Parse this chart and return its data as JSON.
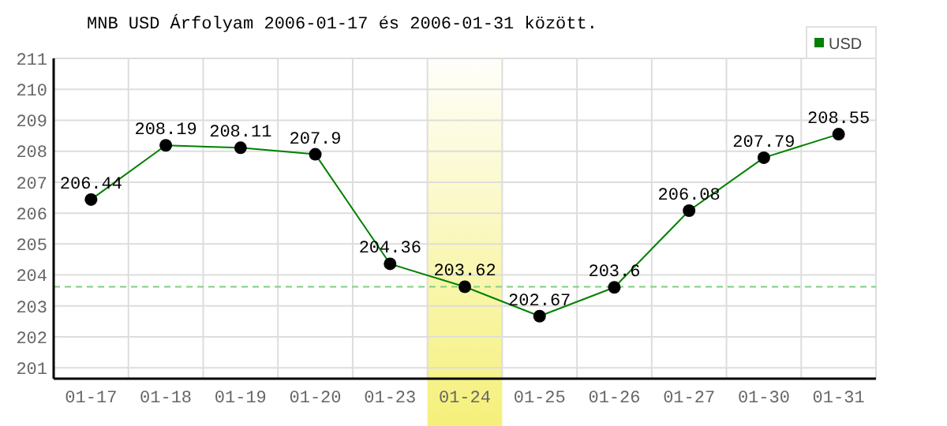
{
  "chart_data": {
    "type": "line",
    "title": "MNB USD Árfolyam 2006-01-17 és 2006-01-31 között.",
    "categories": [
      "01-17",
      "01-18",
      "01-19",
      "01-20",
      "01-23",
      "01-24",
      "01-25",
      "01-26",
      "01-27",
      "01-30",
      "01-31"
    ],
    "series": [
      {
        "name": "USD",
        "color": "#008000",
        "values": [
          206.44,
          208.19,
          208.11,
          207.9,
          204.36,
          203.62,
          202.67,
          203.6,
          206.08,
          207.79,
          208.55
        ]
      }
    ],
    "ylim": [
      200.65,
      211
    ],
    "yticks": [
      201,
      202,
      203,
      204,
      205,
      206,
      207,
      208,
      209,
      210,
      211
    ],
    "grid": true,
    "legend": "top right",
    "marker": "circle",
    "line_style": "solid",
    "data_labels": true,
    "ref_lines": [
      {
        "axis": "y",
        "value": 203.62,
        "color": "#80d080",
        "line_style": "dashed"
      }
    ],
    "bands": [
      {
        "axis": "x",
        "from": "01-24",
        "to": "01-24",
        "color": "#f5f07a"
      }
    ]
  }
}
